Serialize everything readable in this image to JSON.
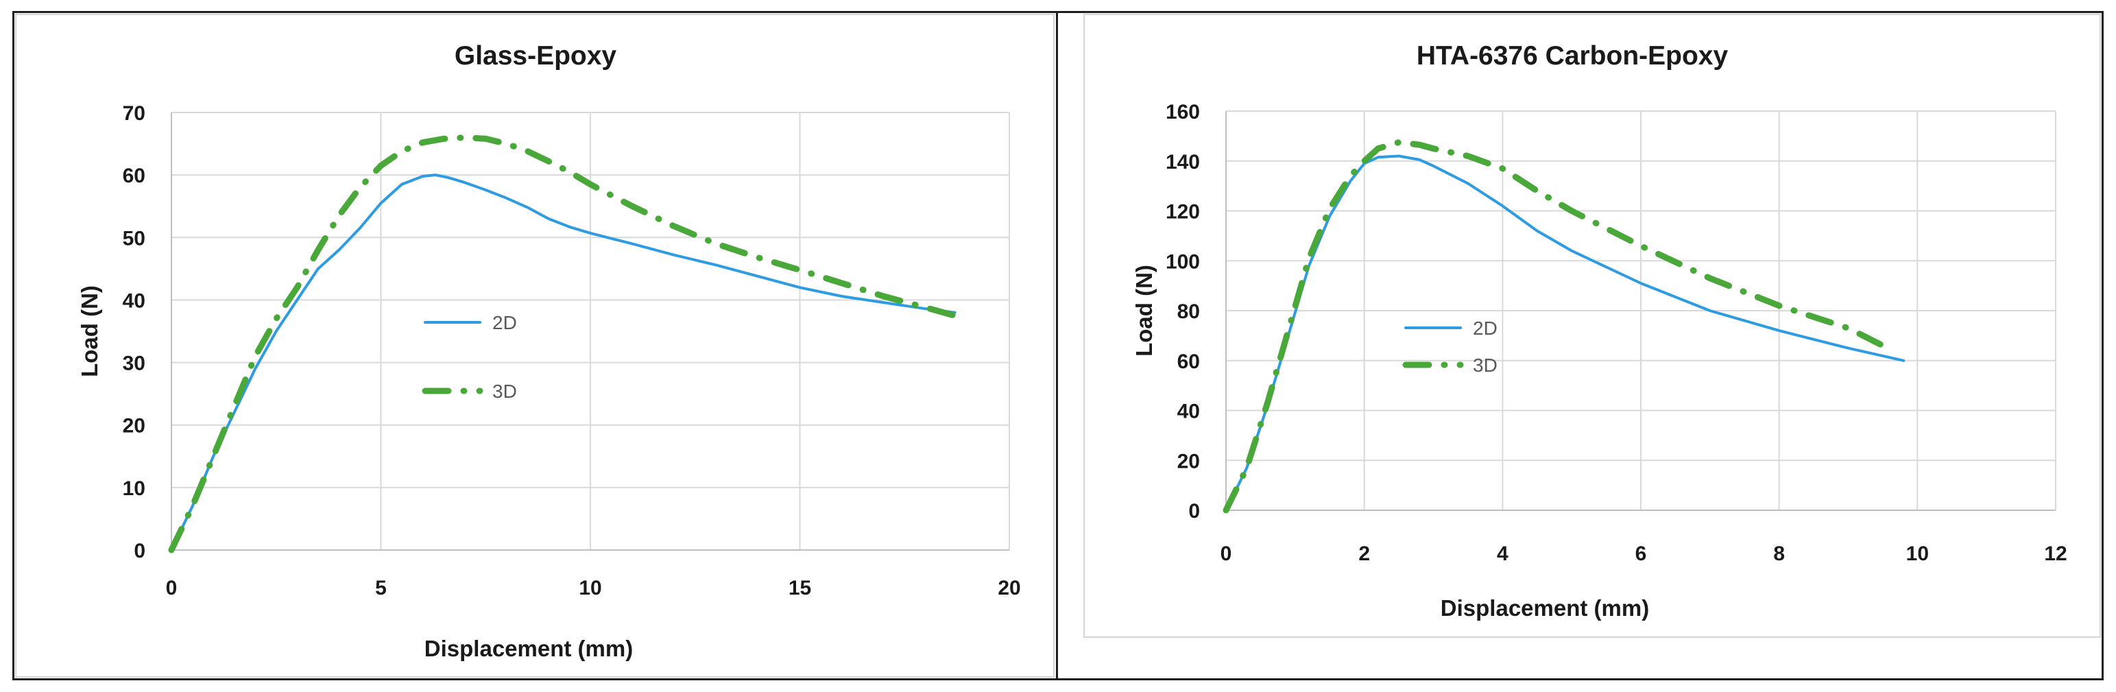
{
  "chart_data": [
    {
      "type": "line",
      "title": "Glass-Epoxy",
      "xlabel": "Displacement (mm)",
      "ylabel": "Load (N)",
      "xlim": [
        0,
        20
      ],
      "ylim": [
        0,
        70
      ],
      "xticks": [
        0,
        5,
        10,
        15,
        20
      ],
      "yticks": [
        0,
        10,
        20,
        30,
        40,
        50,
        60,
        70
      ],
      "grid": true,
      "legend": "center-left",
      "series": [
        {
          "name": "2D",
          "color": "#2f9be0",
          "style": "solid",
          "x": [
            0,
            0.5,
            1,
            1.5,
            2,
            2.5,
            3,
            3.5,
            4,
            4.5,
            5,
            5.5,
            6,
            6.3,
            6.6,
            7,
            7.5,
            8,
            8.5,
            9,
            9.5,
            10,
            11,
            12,
            13,
            14,
            15,
            16,
            17,
            18,
            18.7
          ],
          "y": [
            0,
            7,
            15,
            22,
            29,
            35,
            40,
            45,
            48,
            51.5,
            55.5,
            58.5,
            59.8,
            60,
            59.6,
            58.8,
            57.6,
            56.3,
            54.8,
            53,
            51.7,
            50.7,
            49,
            47.2,
            45.6,
            43.8,
            42,
            40.6,
            39.6,
            38.6,
            38
          ]
        },
        {
          "name": "3D",
          "color": "#4aa83a",
          "style": "dash-dot",
          "x": [
            0,
            0.5,
            1,
            1.5,
            2,
            2.5,
            3,
            3.5,
            4,
            4.5,
            5,
            5.5,
            6,
            6.5,
            7,
            7.5,
            8,
            8.5,
            9,
            9.5,
            10,
            11,
            12,
            13,
            14,
            15,
            16,
            17,
            18,
            18.7
          ],
          "y": [
            0,
            7,
            15,
            23,
            31,
            37,
            42,
            48,
            53.5,
            58,
            61.5,
            63.8,
            65.2,
            65.8,
            66,
            65.8,
            65,
            63.8,
            62.2,
            60.5,
            58.5,
            55,
            51.8,
            49,
            46.8,
            44.8,
            42.7,
            40.6,
            38.8,
            37.5
          ]
        }
      ]
    },
    {
      "type": "line",
      "title": "HTA-6376 Carbon-Epoxy",
      "xlabel": "Displacement (mm)",
      "ylabel": "Load (N)",
      "xlim": [
        0,
        12
      ],
      "ylim": [
        0,
        160
      ],
      "xticks": [
        0,
        2,
        4,
        6,
        8,
        10,
        12
      ],
      "yticks": [
        0,
        20,
        40,
        60,
        80,
        100,
        120,
        140,
        160
      ],
      "grid": true,
      "legend": "center-left",
      "series": [
        {
          "name": "2D",
          "color": "#2f9be0",
          "style": "solid",
          "x": [
            0,
            0.3,
            0.6,
            0.9,
            1.2,
            1.5,
            1.8,
            2.0,
            2.2,
            2.5,
            2.8,
            3.0,
            3.5,
            4.0,
            4.5,
            5.0,
            6.0,
            7.0,
            8.0,
            9.0,
            9.8
          ],
          "y": [
            0,
            17,
            42,
            70,
            98,
            118,
            132,
            139,
            141.5,
            142,
            140.5,
            138,
            131,
            122,
            112,
            104,
            91,
            80,
            72,
            65,
            60
          ]
        },
        {
          "name": "3D",
          "color": "#4aa83a",
          "style": "dash-dot",
          "x": [
            0,
            0.3,
            0.6,
            0.9,
            1.2,
            1.5,
            1.8,
            2.0,
            2.2,
            2.5,
            2.8,
            3.0,
            3.5,
            4.0,
            4.5,
            5.0,
            6.0,
            7.0,
            8.0,
            9.0,
            9.5
          ],
          "y": [
            0,
            17,
            43,
            72,
            101,
            121,
            134,
            140,
            145,
            147.5,
            146.5,
            145,
            142,
            137,
            128,
            120,
            106,
            93,
            82,
            73,
            66
          ]
        }
      ]
    }
  ]
}
